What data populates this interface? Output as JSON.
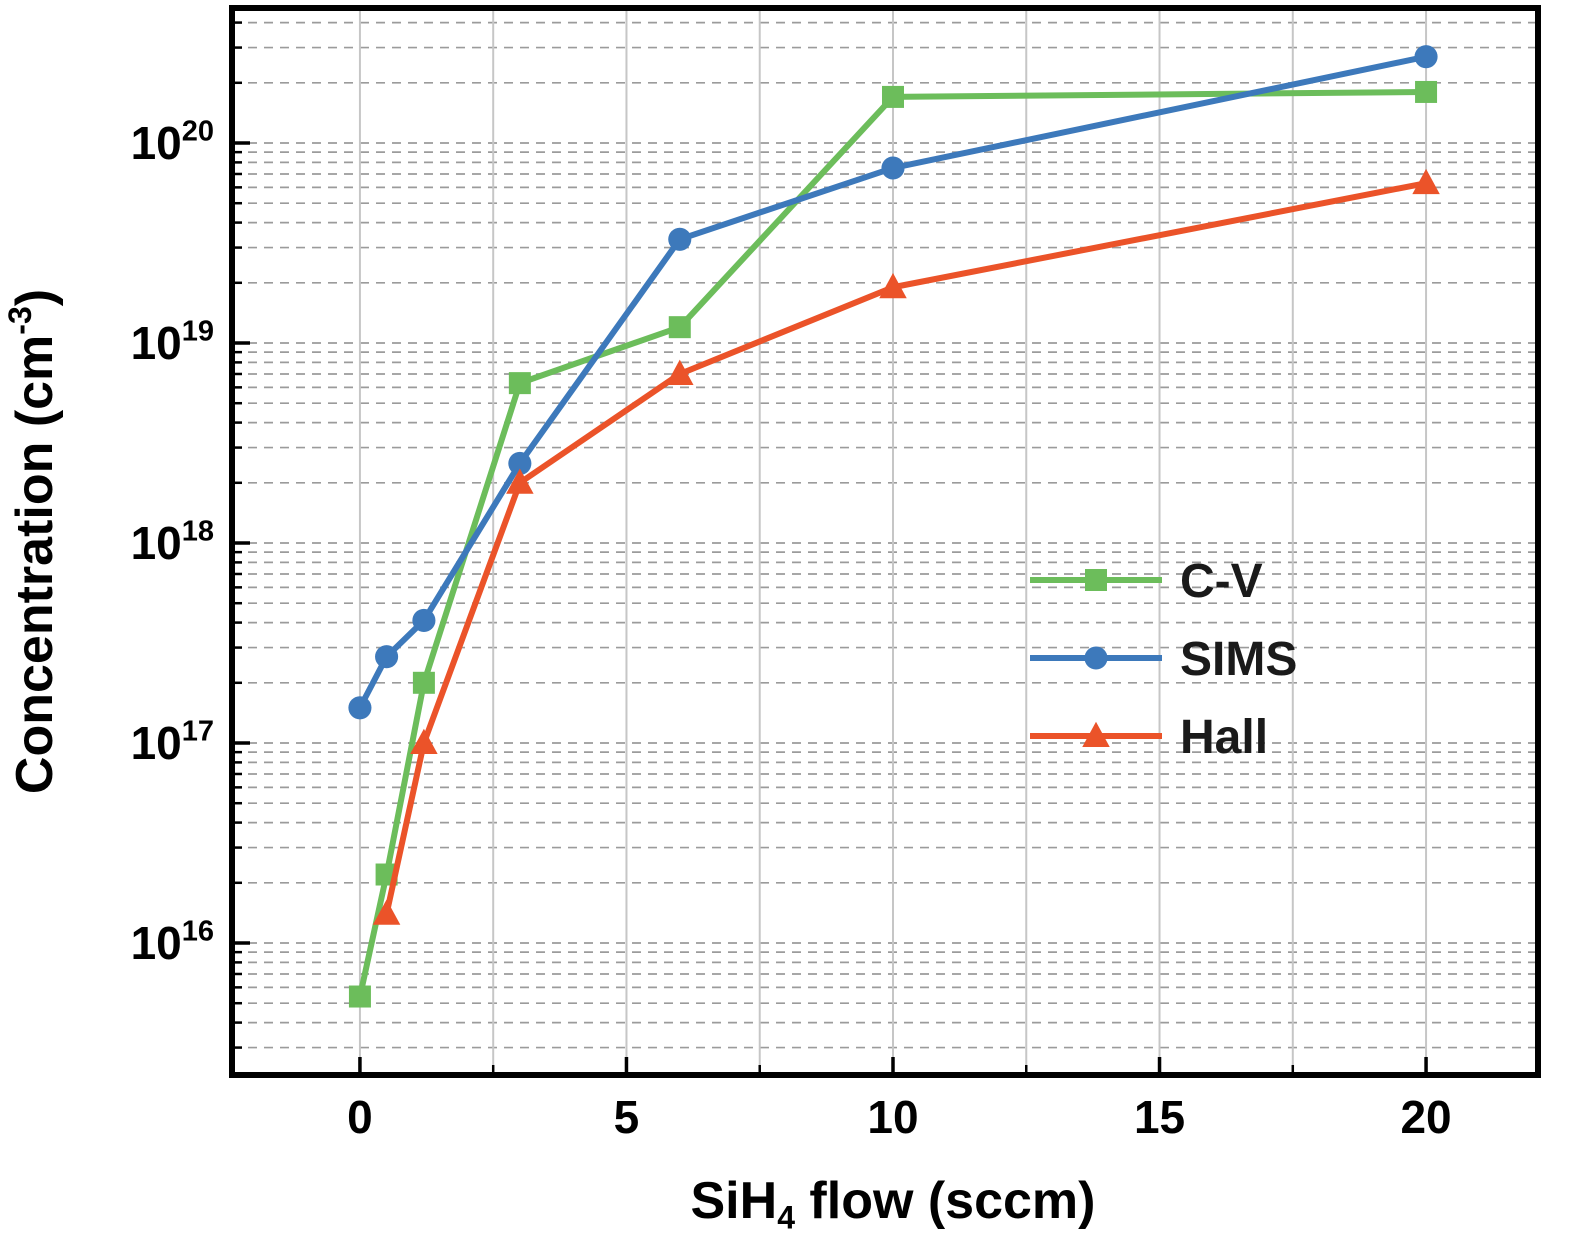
{
  "colors": {
    "background": "#ffffff",
    "axis": "#000000",
    "grid_solid": "#c6c6c6",
    "grid_dashed": "#9b9b9b",
    "text": "#000000"
  },
  "chart_data": {
    "type": "line",
    "title": "",
    "xlabel_plain": "SiH4 flow (sccm)",
    "xlabel_parts": [
      {
        "t": "SiH"
      },
      {
        "t": "4",
        "sub": true
      },
      {
        "t": " flow (sccm)"
      }
    ],
    "ylabel_plain": "Concentration (cm^-3)",
    "ylabel_parts": [
      {
        "t": "Concentration (cm"
      },
      {
        "t": "-3",
        "sup": true
      },
      {
        "t": ")"
      }
    ],
    "x_ticks": [
      0,
      5,
      10,
      15,
      20
    ],
    "x_minor_step": 2.5,
    "xlim": [
      -2.4,
      22.1
    ],
    "y_scale": "log",
    "y_tick_base": "10",
    "y_decades": [
      16,
      17,
      18,
      19,
      20
    ],
    "ylim_exp": [
      15.34,
      20.675
    ],
    "grid": {
      "vertical": "solid",
      "horizontal": "dashed"
    },
    "legend": {
      "position": "right-middle",
      "entries": [
        "C-V",
        "SIMS",
        "Hall"
      ]
    },
    "series": [
      {
        "name": "C-V",
        "color": "#6cbd5b",
        "marker": "square",
        "x": [
          0,
          0.5,
          1.2,
          3,
          6,
          10,
          20
        ],
        "y": [
          5400000000000000.0,
          2.2e+16,
          2e+17,
          6.3e+18,
          1.2e+19,
          1.7e+20,
          1.8e+20
        ]
      },
      {
        "name": "SIMS",
        "color": "#3d79bb",
        "marker": "circle",
        "x": [
          0,
          0.5,
          1.2,
          3,
          6,
          10,
          20
        ],
        "y": [
          1.5e+17,
          2.7e+17,
          4.1e+17,
          2.5e+18,
          3.3e+19,
          7.5e+19,
          2.7e+20
        ]
      },
      {
        "name": "Hall",
        "color": "#eb5329",
        "marker": "triangle",
        "x": [
          0.5,
          1.2,
          3,
          6,
          10,
          20
        ],
        "y": [
          1.4e+16,
          1e+17,
          2e+18,
          7e+18,
          1.9e+19,
          6.3e+19
        ]
      }
    ]
  }
}
